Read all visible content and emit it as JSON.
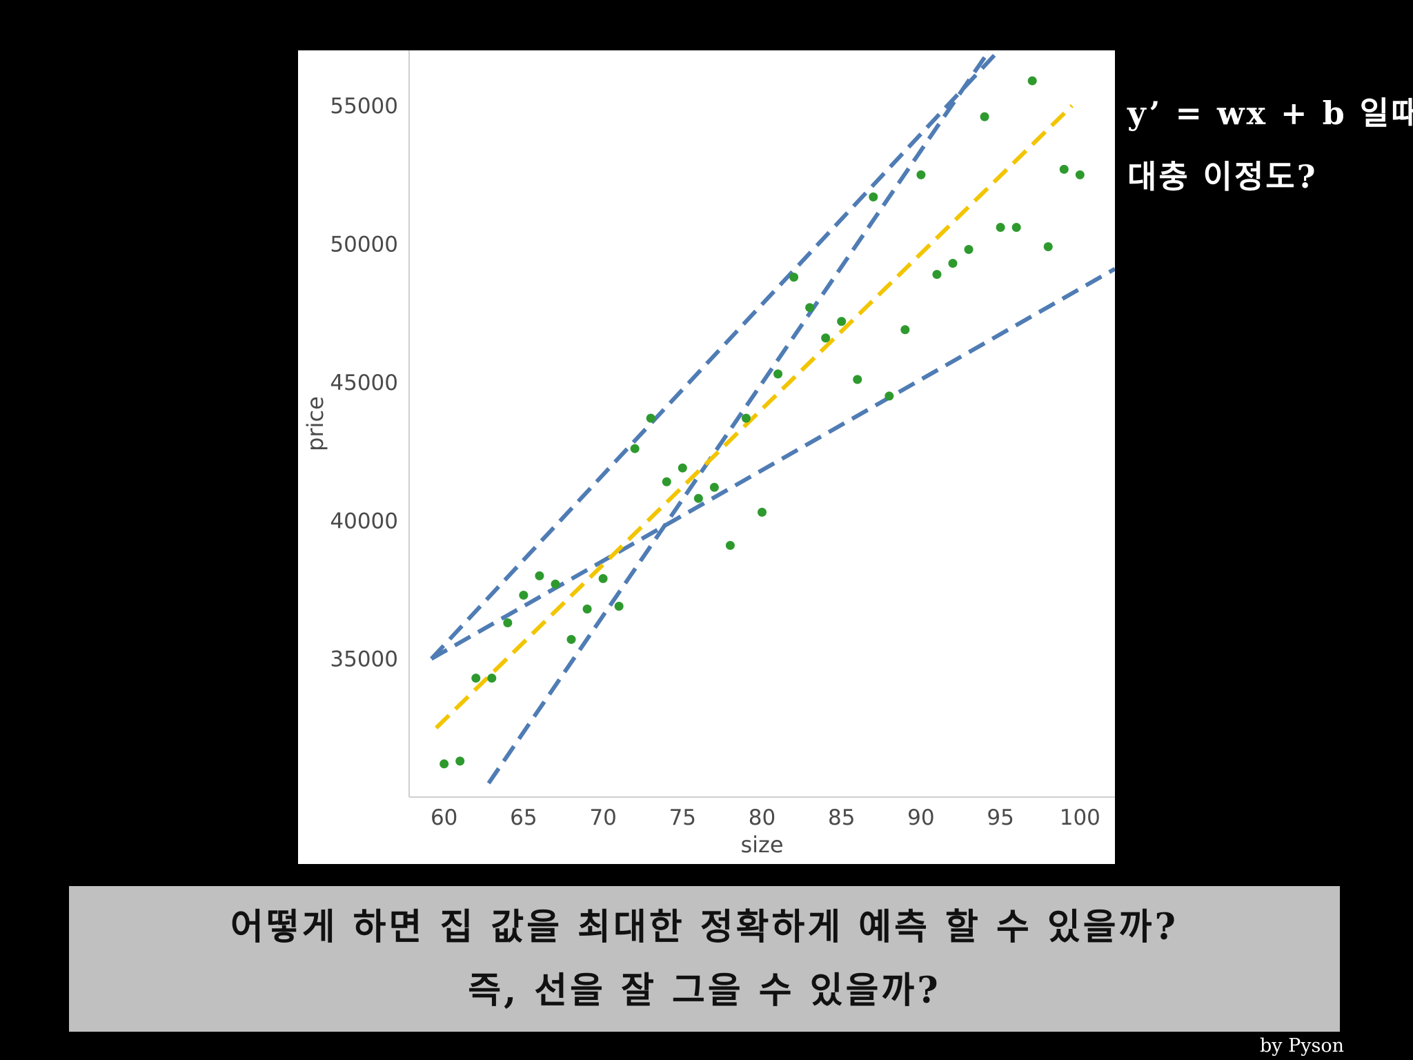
{
  "chart_data": {
    "type": "scatter",
    "title": "",
    "xlabel": "size",
    "ylabel": "price",
    "xlim": [
      57.8,
      102.2
    ],
    "ylim": [
      30000,
      57000
    ],
    "xticks": [
      60,
      65,
      70,
      75,
      80,
      85,
      90,
      95,
      100
    ],
    "yticks": [
      35000,
      40000,
      45000,
      50000,
      55000
    ],
    "grid": false,
    "points": {
      "color": "#2e9a2e",
      "x": [
        60,
        61,
        62,
        63,
        64,
        65,
        66,
        67,
        68,
        69,
        70,
        71,
        72,
        73,
        74,
        75,
        76,
        77,
        78,
        79,
        80,
        81,
        82,
        83,
        84,
        85,
        86,
        87,
        88,
        89,
        90,
        91,
        92,
        93,
        94,
        95,
        96,
        97,
        98,
        99,
        100
      ],
      "y": [
        31200,
        31300,
        34300,
        34300,
        36300,
        37300,
        38000,
        37700,
        35700,
        36800,
        37900,
        36900,
        42600,
        43700,
        41400,
        41900,
        40800,
        41200,
        39100,
        43700,
        40300,
        45300,
        48800,
        47700,
        46600,
        47200,
        45100,
        51700,
        44500,
        46900,
        52500,
        48900,
        49300,
        49800,
        54600,
        50600,
        50600,
        55900,
        49900,
        52700,
        52500
      ]
    },
    "lines": [
      {
        "color": "#4f7cb4",
        "style": "dashed",
        "x": [
          59.2,
          94.9
        ],
        "y": [
          35000,
          57000
        ]
      },
      {
        "color": "#4f7cb4",
        "style": "dashed",
        "x": [
          62.8,
          94.3
        ],
        "y": [
          30500,
          57000
        ]
      },
      {
        "color": "#4f7cb4",
        "style": "dashed",
        "x": [
          59.2,
          102.2
        ],
        "y": [
          35000,
          49100
        ]
      },
      {
        "color": "#f2c500",
        "style": "dashed",
        "x": [
          59.5,
          99.5
        ],
        "y": [
          32500,
          55000
        ]
      }
    ]
  },
  "annotation": {
    "line1": "y’ = wx + b 일때,",
    "line2": "대충 이정도?"
  },
  "caption": {
    "line1": "어떻게 하면 집 값을 최대한 정확하게 예측 할 수 있을까?",
    "line2": "즉, 선을 잘 그을 수 있을까?"
  },
  "credit": "by Pyson"
}
